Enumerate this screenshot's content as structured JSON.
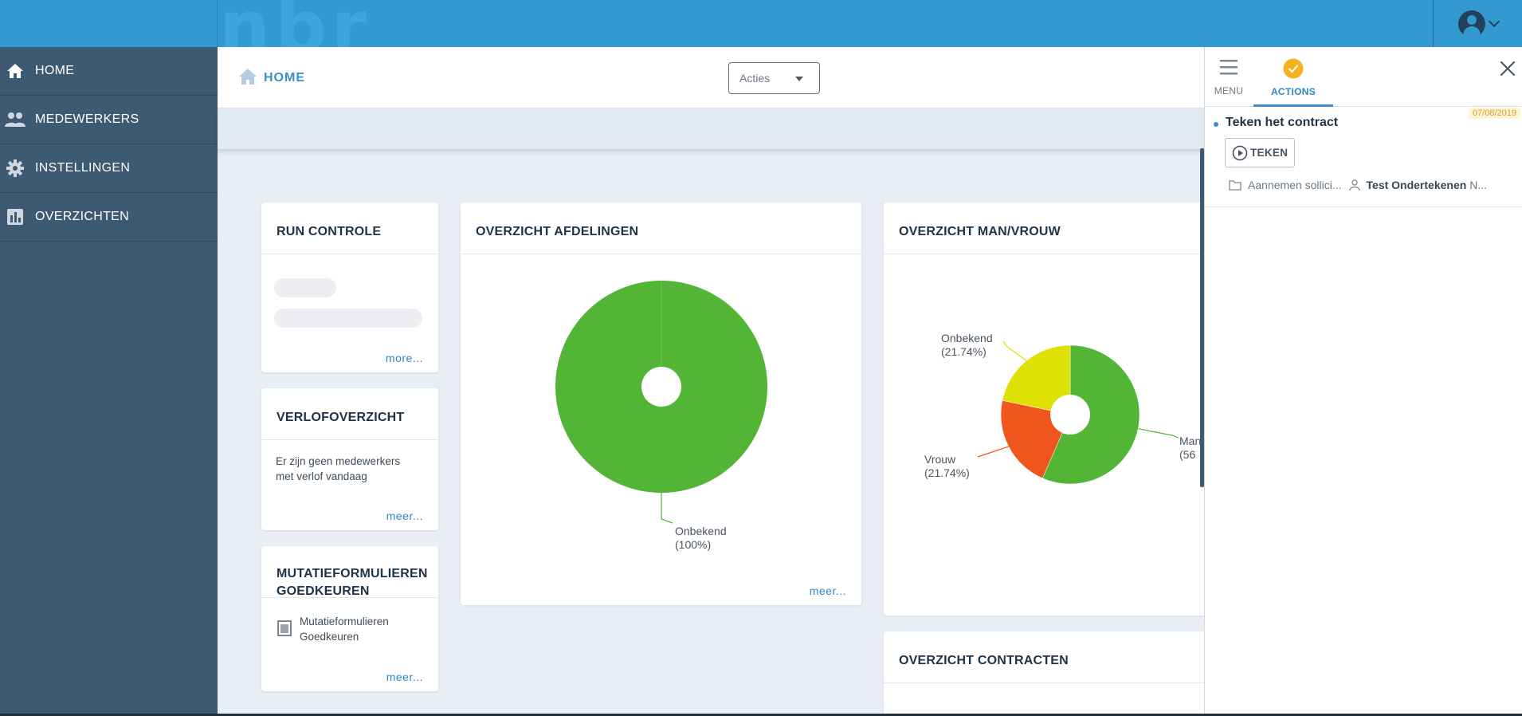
{
  "sidebar": {
    "items": [
      {
        "label": "HOME",
        "icon": "home-icon"
      },
      {
        "label": "MEDEWERKERS",
        "icon": "people-icon"
      },
      {
        "label": "INSTELLINGEN",
        "icon": "gear-icon"
      },
      {
        "label": "OVERZICHTEN",
        "icon": "bar-chart-icon"
      }
    ]
  },
  "header": {
    "breadcrumb": "HOME",
    "actions_select": {
      "value": "Acties"
    }
  },
  "cards": {
    "run_controle": {
      "title": "RUN CONTROLE",
      "link": "more..."
    },
    "verlof": {
      "title": "VERLOFOVERZICHT",
      "text": "Er zijn geen medewerkers met verlof vandaag",
      "link": "meer..."
    },
    "mutatie": {
      "title": "MUTATIEFORMULIEREN GOEDKEUREN",
      "item": "Mutatieformulieren Goedkeuren",
      "link": "meer..."
    },
    "afdelingen": {
      "title": "OVERZICHT AFDELINGEN",
      "link": "meer..."
    },
    "manvrouw": {
      "title": "OVERZICHT MAN/VROUW"
    },
    "contracten": {
      "title": "OVERZICHT CONTRACTEN"
    }
  },
  "chart_data": [
    {
      "type": "pie",
      "title": "OVERZICHT AFDELINGEN",
      "slices": [
        {
          "label": "Onbekend",
          "value": 100,
          "pct_label": "(100%)",
          "color": "#52b535"
        }
      ]
    },
    {
      "type": "pie",
      "title": "OVERZICHT MAN/VROUW",
      "slices": [
        {
          "label": "Man",
          "value": 56.52,
          "pct_label": "(56",
          "color": "#52b535"
        },
        {
          "label": "Vrouw",
          "value": 21.74,
          "pct_label": "(21.74%)",
          "color": "#ef561d"
        },
        {
          "label": "Onbekend",
          "value": 21.74,
          "pct_label": "(21.74%)",
          "color": "#dfe003"
        }
      ]
    }
  ],
  "right_panel": {
    "tabs": [
      {
        "label": "MENU",
        "icon": "hamburger-icon"
      },
      {
        "label": "ACTIONS",
        "icon": "check-circle-icon"
      }
    ],
    "action": {
      "date": "07/08/2019",
      "title": "Teken het contract",
      "button": "TEKEN",
      "folder": "Aannemen sollici...",
      "person": "Test Ondertekenen",
      "person_suffix": "N..."
    }
  },
  "colors": {
    "accent": "#3399d1",
    "sidebar": "#3e5a73",
    "green": "#52b535",
    "orange": "#ef561d",
    "yellow": "#dfe003",
    "badge": "#f5b21f"
  }
}
